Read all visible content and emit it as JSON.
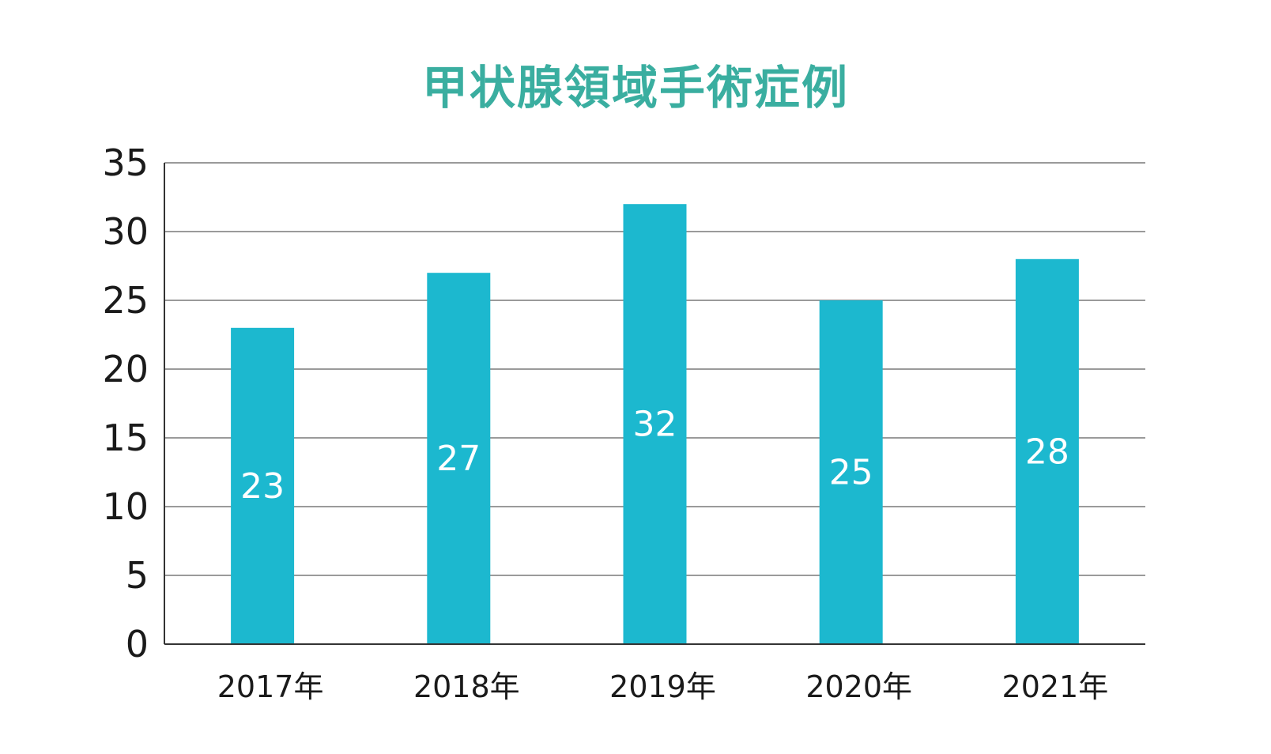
{
  "colors": {
    "title": "#3aaea0",
    "bar": "#1cb8cf",
    "grid": "#9a9a9a",
    "axis": "#333333",
    "text": "#1a1a1a",
    "bar_label": "#ffffff"
  },
  "chart_data": {
    "type": "bar",
    "title": "甲状腺領域手術症例",
    "xlabel": "",
    "ylabel": "",
    "categories": [
      "2017年",
      "2018年",
      "2019年",
      "2020年",
      "2021年"
    ],
    "values": [
      23,
      27,
      32,
      25,
      28
    ],
    "data_labels": [
      "23",
      "27",
      "32",
      "25",
      "28"
    ],
    "ylim": [
      0,
      35
    ],
    "yticks": [
      0,
      5,
      10,
      15,
      20,
      25,
      30,
      35
    ],
    "ytick_labels": [
      "0",
      "5",
      "10",
      "15",
      "20",
      "25",
      "30",
      "35"
    ],
    "grid": true,
    "legend": "none"
  }
}
